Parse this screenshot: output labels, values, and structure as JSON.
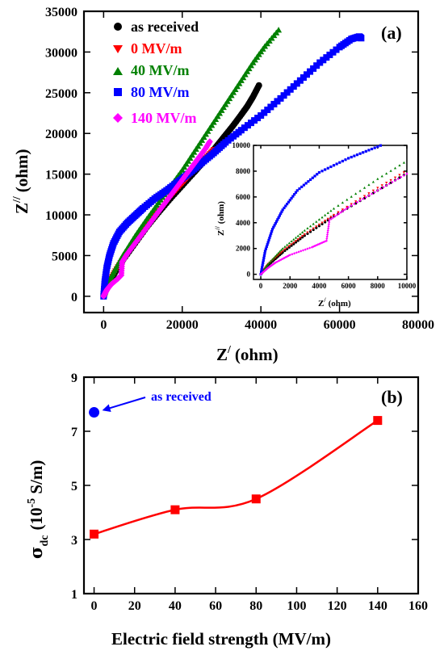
{
  "chart_data": [
    {
      "type": "scatter",
      "panel_label": "(a)",
      "xlabel": "Z",
      "xlabel_sup": "/",
      "xlabel_unit": "(ohm)",
      "ylabel": "Z",
      "ylabel_sup": "//",
      "ylabel_unit": "(ohm)",
      "xlim": [
        -5000,
        80000
      ],
      "ylim": [
        -2000,
        35000
      ],
      "xticks": [
        0,
        20000,
        40000,
        60000,
        80000
      ],
      "yticks": [
        0,
        5000,
        10000,
        15000,
        20000,
        25000,
        30000,
        35000
      ],
      "xtick_labels": [
        "0",
        "20000",
        "40000",
        "60000",
        "80000"
      ],
      "ytick_labels": [
        "0",
        "5000",
        "10000",
        "15000",
        "20000",
        "25000",
        "30000",
        "35000"
      ],
      "legend_position": "top-left",
      "series": [
        {
          "name": "as received",
          "color": "#000000",
          "marker": "circle",
          "x": [
            0,
            500,
            1500,
            3000,
            5000,
            8000,
            11000,
            14000,
            17000,
            20000,
            23000,
            25000,
            27000,
            29000,
            31000,
            33000,
            35000,
            36500,
            38000,
            39500
          ],
          "y": [
            0,
            700,
            1700,
            3000,
            4500,
            6500,
            8500,
            10300,
            12000,
            13600,
            15200,
            16300,
            17400,
            18600,
            19800,
            21000,
            22300,
            23300,
            24500,
            25900
          ]
        },
        {
          "name": "0 MV/m",
          "color": "#ff0000",
          "marker": "triangle-down",
          "x": [
            0,
            500,
            1500,
            3000,
            5000,
            8000,
            11000,
            14000,
            17000,
            20000,
            22000,
            24000,
            26000,
            28000
          ],
          "y": [
            0,
            800,
            1800,
            3100,
            4600,
            6700,
            8700,
            10500,
            12200,
            13800,
            14900,
            16000,
            17000,
            18000
          ]
        },
        {
          "name": "40 MV/m",
          "color": "#008000",
          "marker": "triangle-up",
          "x": [
            0,
            500,
            1500,
            3000,
            5000,
            8000,
            11000,
            14000,
            17000,
            20000,
            23000,
            26000,
            29000,
            32000,
            35000,
            38000,
            41000,
            44500
          ],
          "y": [
            0,
            800,
            2000,
            3400,
            5100,
            7400,
            9500,
            11500,
            13500,
            15500,
            17700,
            19900,
            22100,
            24300,
            26500,
            28700,
            30700,
            32700
          ]
        },
        {
          "name": "80 MV/m",
          "color": "#0000ff",
          "marker": "square",
          "x": [
            0,
            300,
            800,
            1500,
            2500,
            4000,
            6000,
            8000,
            10000,
            13000,
            16000,
            19000,
            22000,
            25000,
            28000,
            31000,
            35000,
            40000,
            45000,
            50000,
            55000,
            60000,
            63000,
            65000,
            65500
          ],
          "y": [
            0,
            1800,
            3500,
            5000,
            6500,
            7900,
            9000,
            9900,
            10800,
            12000,
            13000,
            14100,
            15200,
            16400,
            17600,
            18900,
            20400,
            22200,
            24300,
            26500,
            28700,
            30600,
            31600,
            31900,
            31700
          ]
        },
        {
          "name": "140 MV/m",
          "color": "#ff00ff",
          "marker": "diamond",
          "x": [
            0,
            500,
            1000,
            2000,
            3500,
            4500,
            4700,
            6000,
            8000,
            10000,
            12000,
            14000,
            16000,
            18000,
            20000,
            22000,
            24000,
            26000,
            27000
          ],
          "y": [
            0,
            500,
            900,
            1500,
            2100,
            2600,
            4200,
            5200,
            6500,
            7800,
            9100,
            10400,
            11700,
            13000,
            14300,
            15600,
            16900,
            18200,
            19000
          ]
        }
      ],
      "inset": {
        "xlabel": "Z",
        "xlabel_sup": "/",
        "xlabel_unit": "(ohm)",
        "ylabel": "Z",
        "ylabel_sup": "//",
        "ylabel_unit": "(ohm)",
        "xlim": [
          -500,
          10000
        ],
        "ylim": [
          -400,
          10000
        ],
        "xticks": [
          0,
          2000,
          4000,
          6000,
          8000,
          10000
        ],
        "yticks": [
          0,
          2000,
          4000,
          6000,
          8000,
          10000
        ],
        "xtick_labels": [
          "0",
          "2000",
          "4000",
          "6000",
          "8000",
          "10000"
        ],
        "ytick_labels": [
          "0",
          "2000",
          "4000",
          "6000",
          "8000",
          "10000"
        ]
      }
    },
    {
      "type": "line",
      "panel_label": "(b)",
      "xlabel": "Electric field strength (MV/m)",
      "ylabel": "σ",
      "ylabel_sub": "dc",
      "ylabel_unit_prefix": "(10",
      "ylabel_unit_sup": "-5",
      "ylabel_unit_suffix": " S/m)",
      "xlim": [
        -5,
        160
      ],
      "ylim": [
        1,
        9
      ],
      "xticks": [
        0,
        20,
        40,
        60,
        80,
        100,
        120,
        140,
        160
      ],
      "yticks": [
        1,
        3,
        5,
        7,
        9
      ],
      "xtick_labels": [
        "0",
        "20",
        "40",
        "60",
        "80",
        "100",
        "120",
        "140",
        "160"
      ],
      "ytick_labels": [
        "1",
        "3",
        "5",
        "7",
        "9"
      ],
      "series": [
        {
          "name": "",
          "color": "#ff0000",
          "marker": "square",
          "x": [
            0,
            40,
            80,
            140
          ],
          "y": [
            3.2,
            4.1,
            4.5,
            7.4
          ]
        }
      ],
      "reference_point": {
        "x": 0,
        "y": 7.7,
        "color": "#0000ff",
        "marker": "circle"
      },
      "annotation": "as received",
      "annotation_color": "#0000ff"
    }
  ]
}
